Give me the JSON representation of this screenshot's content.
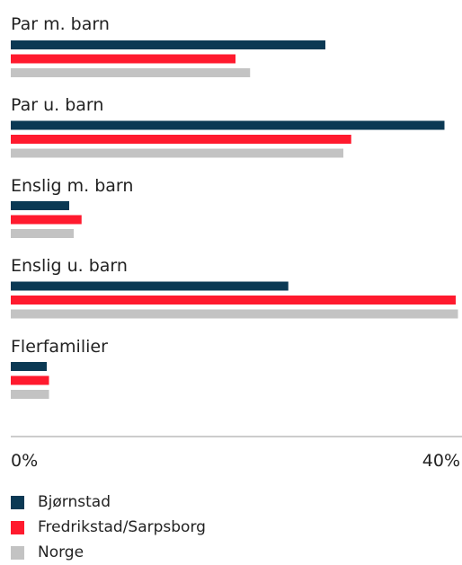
{
  "chart_data": {
    "type": "bar",
    "orientation": "horizontal",
    "categories": [
      "Par m. barn",
      "Par u. barn",
      "Enslig m. barn",
      "Enslig u. barn",
      "Flerfamilier"
    ],
    "series": [
      {
        "name": "Bjørnstad",
        "color": "#0b3954",
        "values": [
          28,
          38.6,
          5.2,
          24.7,
          3.2
        ]
      },
      {
        "name": "Fredrikstad/Sarpsborg",
        "color": "#ff1a2e",
        "values": [
          20,
          30.3,
          6.3,
          39.6,
          3.4
        ]
      },
      {
        "name": "Norge",
        "color": "#c3c3c3",
        "values": [
          21.3,
          29.6,
          5.6,
          39.8,
          3.4
        ]
      }
    ],
    "x_ticks": [
      "0%",
      "40%"
    ],
    "xlim": [
      0,
      40
    ],
    "legend_position": "bottom-left",
    "grid": false
  }
}
